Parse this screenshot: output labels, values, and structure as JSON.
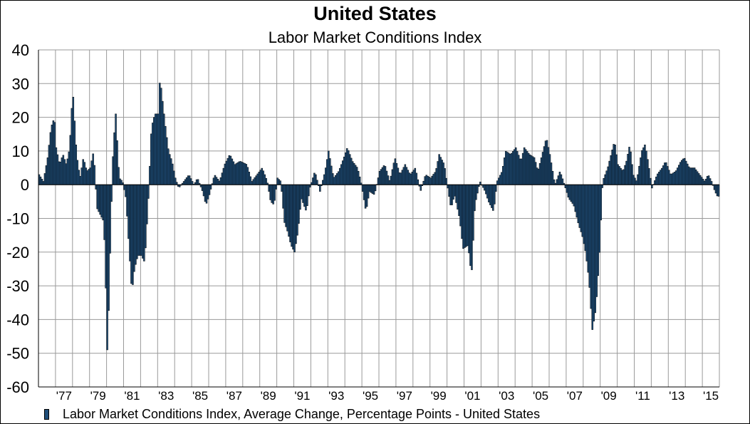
{
  "chart_data": {
    "type": "bar",
    "title": "United States",
    "subtitle": "Labor Market Conditions Index",
    "xlabel": "",
    "ylabel": "",
    "ylim": [
      -60,
      40
    ],
    "yticks": [
      "40",
      "30",
      "20",
      "10",
      "0",
      "-10",
      "-20",
      "-30",
      "-40",
      "-50",
      "-60"
    ],
    "xticks": [
      "'77",
      "'79",
      "'81",
      "'83",
      "'85",
      "'87",
      "'89",
      "'91",
      "'93",
      "'95",
      "'97",
      "'99",
      "'01",
      "'03",
      "'05",
      "'07",
      "'09",
      "'11",
      "'13",
      "'15"
    ],
    "xrange": [
      1976.0,
      2016.0
    ],
    "grid": true,
    "legend_position": "bottom-left",
    "bar_color": "#1F4E79",
    "series": [
      {
        "name": "Labor Market Conditions Index, Average Change, Percentage Points - United States",
        "anchors": [
          [
            1976.0,
            3
          ],
          [
            1976.25,
            1
          ],
          [
            1976.5,
            8
          ],
          [
            1976.7,
            17
          ],
          [
            1976.9,
            20
          ],
          [
            1977.0,
            11
          ],
          [
            1977.2,
            6
          ],
          [
            1977.4,
            9
          ],
          [
            1977.6,
            6
          ],
          [
            1977.8,
            11
          ],
          [
            1977.9,
            22
          ],
          [
            1978.0,
            26
          ],
          [
            1978.2,
            9
          ],
          [
            1978.4,
            2
          ],
          [
            1978.6,
            8
          ],
          [
            1978.8,
            4
          ],
          [
            1979.0,
            5
          ],
          [
            1979.2,
            10
          ],
          [
            1979.4,
            -7
          ],
          [
            1979.6,
            -9
          ],
          [
            1979.8,
            -11
          ],
          [
            1979.9,
            -27
          ],
          [
            1980.0,
            -49
          ],
          [
            1980.1,
            -35
          ],
          [
            1980.2,
            -13
          ],
          [
            1980.35,
            11
          ],
          [
            1980.5,
            21
          ],
          [
            1980.7,
            2
          ],
          [
            1980.9,
            1
          ],
          [
            1981.1,
            -4
          ],
          [
            1981.3,
            -20
          ],
          [
            1981.45,
            -32
          ],
          [
            1981.6,
            -25
          ],
          [
            1981.8,
            -21
          ],
          [
            1982.0,
            -21
          ],
          [
            1982.2,
            -23
          ],
          [
            1982.4,
            -6
          ],
          [
            1982.6,
            17
          ],
          [
            1982.8,
            21
          ],
          [
            1983.0,
            21
          ],
          [
            1983.1,
            32
          ],
          [
            1983.2,
            27
          ],
          [
            1983.4,
            18
          ],
          [
            1983.6,
            10
          ],
          [
            1983.8,
            7
          ],
          [
            1984.0,
            2
          ],
          [
            1984.2,
            -1
          ],
          [
            1984.5,
            1
          ],
          [
            1984.8,
            3
          ],
          [
            1985.1,
            0
          ],
          [
            1985.3,
            2
          ],
          [
            1985.6,
            -2
          ],
          [
            1985.8,
            -6
          ],
          [
            1986.0,
            -3
          ],
          [
            1986.3,
            3
          ],
          [
            1986.6,
            1
          ],
          [
            1986.9,
            6
          ],
          [
            1987.2,
            9
          ],
          [
            1987.5,
            6
          ],
          [
            1987.8,
            7
          ],
          [
            1988.2,
            6
          ],
          [
            1988.5,
            1
          ],
          [
            1988.8,
            3
          ],
          [
            1989.1,
            5
          ],
          [
            1989.4,
            1
          ],
          [
            1989.6,
            -5
          ],
          [
            1989.8,
            -6
          ],
          [
            1990.0,
            2
          ],
          [
            1990.2,
            1
          ],
          [
            1990.4,
            -11
          ],
          [
            1990.6,
            -14
          ],
          [
            1990.8,
            -18
          ],
          [
            1991.0,
            -20
          ],
          [
            1991.2,
            -14
          ],
          [
            1991.4,
            -4
          ],
          [
            1991.7,
            -8
          ],
          [
            1991.9,
            -1
          ],
          [
            1992.2,
            4
          ],
          [
            1992.5,
            -2
          ],
          [
            1992.8,
            4
          ],
          [
            1993.0,
            10
          ],
          [
            1993.3,
            2
          ],
          [
            1993.6,
            4
          ],
          [
            1993.9,
            8
          ],
          [
            1994.1,
            11
          ],
          [
            1994.4,
            7
          ],
          [
            1994.7,
            5
          ],
          [
            1994.9,
            1
          ],
          [
            1995.2,
            -8
          ],
          [
            1995.4,
            -2
          ],
          [
            1995.7,
            -3
          ],
          [
            1996.0,
            4
          ],
          [
            1996.3,
            6
          ],
          [
            1996.6,
            1
          ],
          [
            1996.9,
            8
          ],
          [
            1997.2,
            3
          ],
          [
            1997.5,
            6
          ],
          [
            1997.8,
            3
          ],
          [
            1998.1,
            5
          ],
          [
            1998.4,
            -2
          ],
          [
            1998.7,
            3
          ],
          [
            1999.0,
            2
          ],
          [
            1999.3,
            4
          ],
          [
            1999.5,
            9
          ],
          [
            1999.8,
            6
          ],
          [
            2000.0,
            -1
          ],
          [
            2000.2,
            -7
          ],
          [
            2000.4,
            -3
          ],
          [
            2000.7,
            -10
          ],
          [
            2000.9,
            -19
          ],
          [
            2001.2,
            -18
          ],
          [
            2001.4,
            -27
          ],
          [
            2001.6,
            -6
          ],
          [
            2001.9,
            1
          ],
          [
            2002.2,
            -2
          ],
          [
            2002.4,
            -5
          ],
          [
            2002.7,
            -8
          ],
          [
            2002.9,
            1
          ],
          [
            2003.2,
            4
          ],
          [
            2003.4,
            10
          ],
          [
            2003.7,
            9
          ],
          [
            2004.0,
            11
          ],
          [
            2004.3,
            7
          ],
          [
            2004.5,
            11
          ],
          [
            2004.8,
            9
          ],
          [
            2005.1,
            8
          ],
          [
            2005.3,
            4
          ],
          [
            2005.6,
            10
          ],
          [
            2005.8,
            14
          ],
          [
            2006.0,
            9
          ],
          [
            2006.3,
            0
          ],
          [
            2006.6,
            4
          ],
          [
            2006.8,
            1
          ],
          [
            2007.1,
            -4
          ],
          [
            2007.4,
            -6
          ],
          [
            2007.7,
            -12
          ],
          [
            2007.9,
            -15
          ],
          [
            2008.1,
            -20
          ],
          [
            2008.3,
            -28
          ],
          [
            2008.5,
            -43
          ],
          [
            2008.7,
            -37
          ],
          [
            2008.9,
            -22
          ],
          [
            2009.1,
            1
          ],
          [
            2009.4,
            5
          ],
          [
            2009.6,
            9
          ],
          [
            2009.8,
            13
          ],
          [
            2010.0,
            6
          ],
          [
            2010.3,
            4
          ],
          [
            2010.5,
            7
          ],
          [
            2010.7,
            12
          ],
          [
            2010.9,
            3
          ],
          [
            2011.1,
            1
          ],
          [
            2011.4,
            10
          ],
          [
            2011.6,
            12
          ],
          [
            2011.8,
            6
          ],
          [
            2012.0,
            -1
          ],
          [
            2012.3,
            3
          ],
          [
            2012.6,
            5
          ],
          [
            2012.8,
            7
          ],
          [
            2013.1,
            3
          ],
          [
            2013.4,
            4
          ],
          [
            2013.7,
            7
          ],
          [
            2013.9,
            8
          ],
          [
            2014.2,
            5
          ],
          [
            2014.5,
            5
          ],
          [
            2014.8,
            3
          ],
          [
            2015.1,
            1
          ],
          [
            2015.3,
            3
          ],
          [
            2015.5,
            1
          ],
          [
            2015.7,
            -2
          ],
          [
            2015.9,
            -4
          ],
          [
            2016.05,
            1
          ],
          [
            2016.2,
            -2
          ]
        ]
      }
    ]
  }
}
